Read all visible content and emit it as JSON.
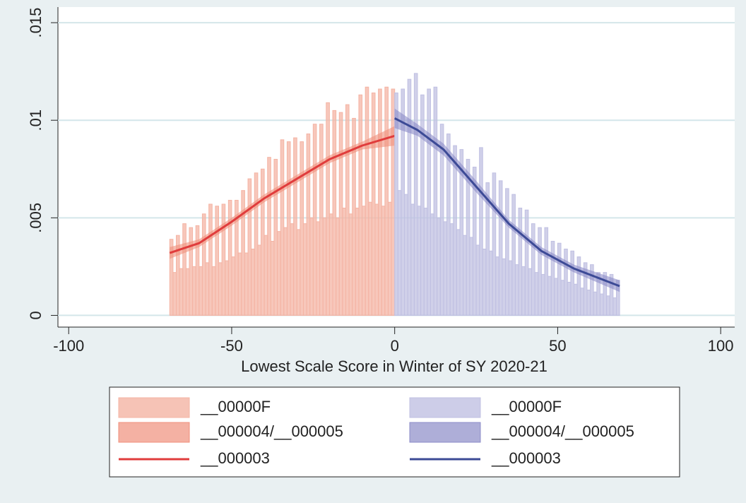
{
  "chart_data": {
    "type": "histogram",
    "x_label": "Lowest Scale Score in Winter of SY 2020-21",
    "xlim": [
      -103.3,
      104.3
    ],
    "ylim": [
      -0.0006,
      0.0158
    ],
    "xticks": [
      -100,
      -50,
      0,
      50,
      100
    ],
    "yticks": [
      0,
      {
        "value": 0.005,
        "label": ".005"
      },
      {
        "value": 0.01,
        "label": ".01"
      },
      {
        "value": 0.015,
        "label": ".015"
      }
    ],
    "grid": true,
    "series": [
      {
        "name": "__00000F",
        "type": "bar",
        "color": "#f4b4a4",
        "bins": [
          -69,
          -68,
          -67,
          -66,
          -65,
          -64,
          -63,
          -62,
          -61,
          -60,
          -59,
          -58,
          -57,
          -56,
          -55,
          -54,
          -53,
          -52,
          -51,
          -50,
          -49,
          -48,
          -47,
          -46,
          -45,
          -44,
          -43,
          -42,
          -41,
          -40,
          -39,
          -38,
          -37,
          -36,
          -35,
          -34,
          -33,
          -32,
          -31,
          -30,
          -29,
          -28,
          -27,
          -26,
          -25,
          -24,
          -23,
          -22,
          -21,
          -20,
          -19,
          -18,
          -17,
          -16,
          -15,
          -14,
          -13,
          -12,
          -11,
          -10,
          -9,
          -8,
          -7,
          -6,
          -5,
          -4,
          -3,
          -2,
          -1,
          0
        ],
        "values": [
          0.0039,
          0.0022,
          0.0041,
          0.0024,
          0.0047,
          0.0024,
          0.0045,
          0.0025,
          0.0046,
          0.0025,
          0.0052,
          0.0027,
          0.0057,
          0.0025,
          0.0056,
          0.0027,
          0.0057,
          0.0028,
          0.0059,
          0.003,
          0.0059,
          0.0032,
          0.0064,
          0.0032,
          0.007,
          0.0034,
          0.0073,
          0.0036,
          0.0075,
          0.0041,
          0.0081,
          0.0038,
          0.008,
          0.0043,
          0.009,
          0.0045,
          0.0089,
          0.0047,
          0.0091,
          0.0044,
          0.0089,
          0.0047,
          0.0093,
          0.005,
          0.0098,
          0.0048,
          0.0098,
          0.005,
          0.0109,
          0.0052,
          0.0105,
          0.005,
          0.0104,
          0.0055,
          0.0108,
          0.0052,
          0.0101,
          0.0055,
          0.0113,
          0.0056,
          0.0117,
          0.0058,
          0.0114,
          0.0057,
          0.0116,
          0.0056,
          0.0117,
          0.0058,
          0.0116
        ]
      },
      {
        "name": "__000004/__000005",
        "type": "area",
        "color": "#f0907c",
        "x": [
          -69,
          -60,
          -50,
          -40,
          -30,
          -20,
          -10,
          0
        ],
        "lower": [
          0.0029,
          0.0035,
          0.0046,
          0.0058,
          0.0068,
          0.0078,
          0.0085,
          0.0087
        ],
        "upper": [
          0.0035,
          0.0039,
          0.005,
          0.0062,
          0.0072,
          0.0082,
          0.0089,
          0.0097
        ]
      },
      {
        "name": "__000003",
        "type": "line",
        "color": "#e03c3c",
        "x": [
          -69,
          -60,
          -50,
          -40,
          -30,
          -20,
          -10,
          0
        ],
        "values": [
          0.0032,
          0.0037,
          0.0048,
          0.006,
          0.007,
          0.008,
          0.0087,
          0.0092
        ]
      },
      {
        "name": "__00000F",
        "type": "bar",
        "color": "#c0c0e2",
        "bins": [
          0,
          1,
          2,
          3,
          4,
          5,
          6,
          7,
          8,
          9,
          10,
          11,
          12,
          13,
          14,
          15,
          16,
          17,
          18,
          19,
          20,
          21,
          22,
          23,
          24,
          25,
          26,
          27,
          28,
          29,
          30,
          31,
          32,
          33,
          34,
          35,
          36,
          37,
          38,
          39,
          40,
          41,
          42,
          43,
          44,
          45,
          46,
          47,
          48,
          49,
          50,
          51,
          52,
          53,
          54,
          55,
          56,
          57,
          58,
          59,
          60,
          61,
          62,
          63,
          64,
          65,
          66,
          67,
          68,
          69
        ],
        "values": [
          0.0114,
          0.0064,
          0.0116,
          0.0062,
          0.0121,
          0.0057,
          0.0124,
          0.0056,
          0.0113,
          0.0055,
          0.0116,
          0.0052,
          0.0117,
          0.005,
          0.0098,
          0.0048,
          0.0093,
          0.0047,
          0.0087,
          0.0044,
          0.0085,
          0.0041,
          0.008,
          0.004,
          0.0076,
          0.0036,
          0.0086,
          0.0034,
          0.0068,
          0.0033,
          0.0073,
          0.003,
          0.0069,
          0.0029,
          0.0065,
          0.0028,
          0.0062,
          0.0026,
          0.0055,
          0.0025,
          0.0054,
          0.0024,
          0.0047,
          0.0022,
          0.0045,
          0.0021,
          0.0045,
          0.002,
          0.0038,
          0.0019,
          0.0037,
          0.0018,
          0.0034,
          0.0017,
          0.0033,
          0.0016,
          0.003,
          0.0014,
          0.0027,
          0.0013,
          0.0026,
          0.0012,
          0.0022,
          0.0011,
          0.0022,
          0.001,
          0.0021,
          0.0009,
          0.0018
        ]
      },
      {
        "name": "__000004/__000005",
        "type": "area",
        "color": "#8c8cc8",
        "x": [
          0,
          7,
          15,
          25,
          35,
          45,
          55,
          69
        ],
        "lower": [
          0.0096,
          0.0092,
          0.0082,
          0.0063,
          0.0045,
          0.0031,
          0.0022,
          0.0012
        ],
        "upper": [
          0.0106,
          0.0098,
          0.0088,
          0.0069,
          0.0049,
          0.0035,
          0.0026,
          0.0018
        ]
      },
      {
        "name": "__000003",
        "type": "line",
        "color": "#3c4a96",
        "x": [
          0,
          7,
          15,
          25,
          35,
          45,
          55,
          69
        ],
        "values": [
          0.0101,
          0.0095,
          0.0085,
          0.0066,
          0.0047,
          0.0033,
          0.0024,
          0.0015
        ]
      }
    ]
  }
}
